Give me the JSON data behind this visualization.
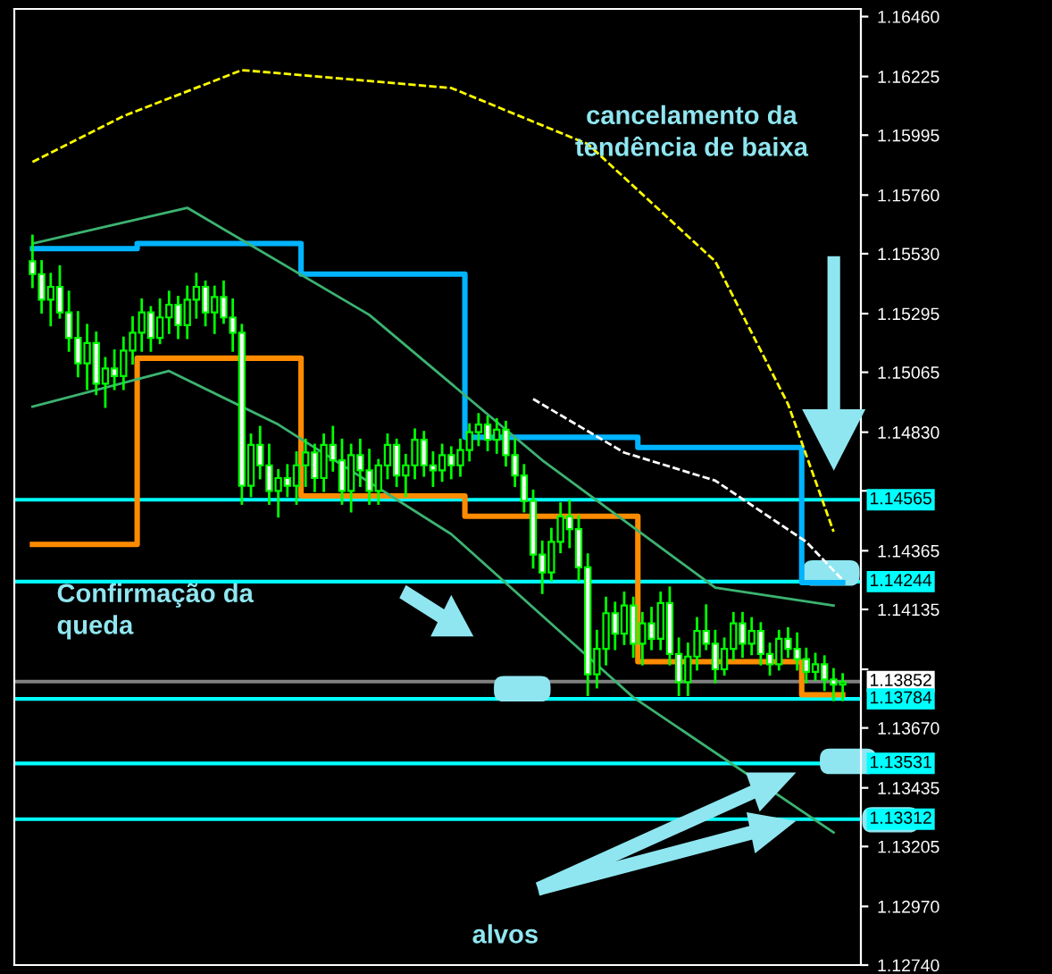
{
  "chart_data": {
    "type": "candlestick",
    "categories": [
      null,
      null,
      null,
      null,
      null,
      null,
      null,
      null,
      null,
      null,
      null,
      null,
      null,
      null,
      null,
      null,
      null,
      null,
      null,
      null,
      null,
      null,
      null,
      null,
      null,
      null,
      null,
      null,
      null,
      null,
      null,
      null,
      null,
      null,
      null,
      null,
      null,
      null,
      null,
      null,
      null,
      null,
      null,
      null,
      null,
      null,
      null,
      null,
      null,
      null,
      null,
      null,
      null,
      null,
      null,
      null,
      null,
      null,
      null,
      null,
      null,
      null,
      null,
      null,
      null,
      null,
      null,
      null,
      null,
      null,
      null,
      null,
      null,
      null,
      null,
      null,
      null,
      null,
      null,
      null,
      null,
      null,
      null,
      null,
      null,
      null,
      null,
      null,
      null,
      null
    ],
    "ohlc": [
      [
        1.155,
        1.156,
        1.154,
        1.1545
      ],
      [
        1.1545,
        1.155,
        1.153,
        1.1535
      ],
      [
        1.1535,
        1.1545,
        1.1525,
        1.154
      ],
      [
        1.154,
        1.1548,
        1.1528,
        1.153
      ],
      [
        1.153,
        1.1538,
        1.1515,
        1.152
      ],
      [
        1.152,
        1.153,
        1.1505,
        1.151
      ],
      [
        1.151,
        1.1525,
        1.15,
        1.1518
      ],
      [
        1.1518,
        1.1522,
        1.1498,
        1.1502
      ],
      [
        1.1502,
        1.1512,
        1.1493,
        1.1508
      ],
      [
        1.1508,
        1.1515,
        1.15,
        1.1505
      ],
      [
        1.1505,
        1.152,
        1.15,
        1.1515
      ],
      [
        1.1515,
        1.1528,
        1.151,
        1.1522
      ],
      [
        1.1522,
        1.1535,
        1.1515,
        1.153
      ],
      [
        1.153,
        1.1532,
        1.1515,
        1.152
      ],
      [
        1.152,
        1.1535,
        1.1518,
        1.1528
      ],
      [
        1.1528,
        1.1538,
        1.1522,
        1.1533
      ],
      [
        1.1533,
        1.1536,
        1.152,
        1.1525
      ],
      [
        1.1525,
        1.154,
        1.152,
        1.1535
      ],
      [
        1.1535,
        1.1545,
        1.1528,
        1.154
      ],
      [
        1.154,
        1.1542,
        1.1525,
        1.153
      ],
      [
        1.153,
        1.154,
        1.1522,
        1.1536
      ],
      [
        1.1536,
        1.1542,
        1.1526,
        1.1528
      ],
      [
        1.1528,
        1.1535,
        1.1515,
        1.1522
      ],
      [
        1.1522,
        1.1525,
        1.1455,
        1.1462
      ],
      [
        1.1462,
        1.1482,
        1.1458,
        1.1478
      ],
      [
        1.1478,
        1.1485,
        1.1465,
        1.147
      ],
      [
        1.147,
        1.1478,
        1.1455,
        1.146
      ],
      [
        1.146,
        1.1468,
        1.145,
        1.1465
      ],
      [
        1.1465,
        1.147,
        1.1458,
        1.1462
      ],
      [
        1.1462,
        1.1475,
        1.1455,
        1.147
      ],
      [
        1.147,
        1.148,
        1.1462,
        1.1475
      ],
      [
        1.1475,
        1.1478,
        1.146,
        1.1465
      ],
      [
        1.1465,
        1.1482,
        1.146,
        1.1478
      ],
      [
        1.1478,
        1.1485,
        1.1468,
        1.1472
      ],
      [
        1.1472,
        1.148,
        1.1455,
        1.146
      ],
      [
        1.146,
        1.1478,
        1.1452,
        1.1474
      ],
      [
        1.1474,
        1.148,
        1.1462,
        1.1468
      ],
      [
        1.1468,
        1.1476,
        1.1455,
        1.146
      ],
      [
        1.146,
        1.1472,
        1.1455,
        1.147
      ],
      [
        1.147,
        1.1482,
        1.1465,
        1.1478
      ],
      [
        1.1478,
        1.148,
        1.1462,
        1.1466
      ],
      [
        1.1466,
        1.1474,
        1.1458,
        1.147
      ],
      [
        1.147,
        1.1484,
        1.1465,
        1.148
      ],
      [
        1.148,
        1.1483,
        1.1466,
        1.147
      ],
      [
        1.147,
        1.1475,
        1.1462,
        1.1468
      ],
      [
        1.1468,
        1.1478,
        1.1464,
        1.1474
      ],
      [
        1.1474,
        1.1477,
        1.1465,
        1.147
      ],
      [
        1.147,
        1.148,
        1.1466,
        1.1476
      ],
      [
        1.1476,
        1.1486,
        1.1472,
        1.1483
      ],
      [
        1.1483,
        1.149,
        1.1478,
        1.1486
      ],
      [
        1.1486,
        1.1489,
        1.1476,
        1.148
      ],
      [
        1.148,
        1.1488,
        1.1475,
        1.1484
      ],
      [
        1.1484,
        1.1487,
        1.147,
        1.1474
      ],
      [
        1.1474,
        1.148,
        1.1462,
        1.1466
      ],
      [
        1.1466,
        1.147,
        1.1452,
        1.1456
      ],
      [
        1.1456,
        1.146,
        1.143,
        1.1435
      ],
      [
        1.1435,
        1.144,
        1.142,
        1.1428
      ],
      [
        1.1428,
        1.1445,
        1.1425,
        1.144
      ],
      [
        1.144,
        1.1455,
        1.1436,
        1.145
      ],
      [
        1.145,
        1.1456,
        1.1438,
        1.1445
      ],
      [
        1.1445,
        1.145,
        1.1425,
        1.143
      ],
      [
        1.143,
        1.1435,
        1.138,
        1.1388
      ],
      [
        1.1388,
        1.1405,
        1.1383,
        1.1398
      ],
      [
        1.1398,
        1.1418,
        1.1392,
        1.1412
      ],
      [
        1.1412,
        1.1416,
        1.1398,
        1.1404
      ],
      [
        1.1404,
        1.142,
        1.14,
        1.1415
      ],
      [
        1.1415,
        1.1418,
        1.1395,
        1.14
      ],
      [
        1.14,
        1.1412,
        1.1392,
        1.1408
      ],
      [
        1.1408,
        1.1414,
        1.1398,
        1.1402
      ],
      [
        1.1402,
        1.142,
        1.1398,
        1.1416
      ],
      [
        1.1416,
        1.1422,
        1.1392,
        1.1396
      ],
      [
        1.1396,
        1.1402,
        1.138,
        1.1385
      ],
      [
        1.1385,
        1.14,
        1.138,
        1.1395
      ],
      [
        1.1395,
        1.141,
        1.139,
        1.1405
      ],
      [
        1.1405,
        1.1415,
        1.1398,
        1.14
      ],
      [
        1.14,
        1.1405,
        1.1385,
        1.139
      ],
      [
        1.139,
        1.1402,
        1.1388,
        1.1398
      ],
      [
        1.1398,
        1.1412,
        1.1394,
        1.1408
      ],
      [
        1.1408,
        1.1412,
        1.1395,
        1.14
      ],
      [
        1.14,
        1.141,
        1.1396,
        1.1405
      ],
      [
        1.1405,
        1.1408,
        1.1392,
        1.1396
      ],
      [
        1.1396,
        1.14,
        1.1388,
        1.1392
      ],
      [
        1.1392,
        1.1405,
        1.139,
        1.1402
      ],
      [
        1.1402,
        1.1406,
        1.1395,
        1.1398
      ],
      [
        1.1398,
        1.1404,
        1.139,
        1.1394
      ],
      [
        1.1394,
        1.1398,
        1.1385,
        1.1389
      ],
      [
        1.1389,
        1.1396,
        1.1386,
        1.1392
      ],
      [
        1.1392,
        1.1395,
        1.1382,
        1.1386
      ],
      [
        1.1386,
        1.139,
        1.1378,
        1.1384
      ],
      [
        1.1384,
        1.1388,
        1.1378,
        1.1385
      ]
    ],
    "color": "#00ff00",
    "series": [
      {
        "type": "step",
        "color": "#00b4ff",
        "values": [
          1.1555,
          1.1555,
          1.1555,
          1.1555,
          1.1555,
          1.1555,
          1.1555,
          1.1555,
          1.1555,
          1.1555,
          1.1555,
          1.1555,
          1.1557,
          1.1557,
          1.1557,
          1.1557,
          1.1557,
          1.1557,
          1.1557,
          1.1557,
          1.1557,
          1.1557,
          1.1557,
          1.1557,
          1.1557,
          1.1557,
          1.1557,
          1.1557,
          1.1557,
          1.1557,
          1.1545,
          1.1545,
          1.1545,
          1.1545,
          1.1545,
          1.1545,
          1.1545,
          1.1545,
          1.1545,
          1.1545,
          1.1545,
          1.1545,
          1.1545,
          1.1545,
          1.1545,
          1.1545,
          1.1545,
          1.1545,
          1.1481,
          1.1481,
          1.1481,
          1.1481,
          1.1481,
          1.1481,
          1.1481,
          1.1481,
          1.1481,
          1.1481,
          1.1481,
          1.1481,
          1.1481,
          1.1481,
          1.1481,
          1.1481,
          1.1481,
          1.1481,
          1.1481,
          1.1477,
          1.1477,
          1.1477,
          1.1477,
          1.1477,
          1.1477,
          1.1477,
          1.1477,
          1.1477,
          1.1477,
          1.1477,
          1.1477,
          1.1477,
          1.1477,
          1.1477,
          1.1477,
          1.1477,
          1.1477,
          1.1424,
          1.1424,
          1.1424,
          1.1424,
          1.1424
        ]
      },
      {
        "type": "step",
        "color": "#ff8c00",
        "values": [
          1.1439,
          1.1439,
          1.1439,
          1.1439,
          1.1439,
          1.1439,
          1.1439,
          1.1439,
          1.1439,
          1.1439,
          1.1439,
          1.1439,
          1.1512,
          1.1512,
          1.1512,
          1.1512,
          1.1512,
          1.1512,
          1.1512,
          1.1512,
          1.1512,
          1.1512,
          1.1512,
          1.1512,
          1.1512,
          1.1512,
          1.1512,
          1.1512,
          1.1512,
          1.1512,
          1.1458,
          1.1458,
          1.1458,
          1.1458,
          1.1458,
          1.1458,
          1.1458,
          1.1458,
          1.1458,
          1.1458,
          1.1458,
          1.1458,
          1.1458,
          1.1458,
          1.1458,
          1.1458,
          1.1458,
          1.1458,
          1.145,
          1.145,
          1.145,
          1.145,
          1.145,
          1.145,
          1.145,
          1.145,
          1.145,
          1.145,
          1.145,
          1.145,
          1.145,
          1.145,
          1.145,
          1.145,
          1.145,
          1.145,
          1.145,
          1.1393,
          1.1393,
          1.1393,
          1.1393,
          1.1393,
          1.1393,
          1.1393,
          1.1393,
          1.1393,
          1.1393,
          1.1393,
          1.1393,
          1.1393,
          1.1393,
          1.1393,
          1.1393,
          1.1393,
          1.1393,
          1.138,
          1.138,
          1.138,
          1.138,
          1.138
        ]
      },
      {
        "type": "line",
        "color": "#ffff00",
        "line_style": "dashed",
        "values": [
          1.1589,
          null,
          null,
          null,
          null,
          null,
          null,
          null,
          null,
          null,
          1.1607,
          null,
          null,
          null,
          null,
          null,
          null,
          null,
          null,
          null,
          null,
          null,
          null,
          1.1625,
          null,
          null,
          null,
          null,
          null,
          null,
          null,
          null,
          null,
          null,
          null,
          null,
          null,
          null,
          null,
          null,
          null,
          null,
          null,
          null,
          null,
          null,
          1.1618,
          null,
          null,
          null,
          null,
          null,
          null,
          null,
          null,
          null,
          null,
          null,
          null,
          null,
          null,
          1.1596,
          null,
          null,
          null,
          null,
          null,
          null,
          null,
          null,
          null,
          null,
          null,
          null,
          null,
          1.155,
          null,
          null,
          null,
          null,
          null,
          null,
          null,
          1.1494,
          null,
          null,
          null,
          null,
          1.1444,
          null
        ]
      },
      {
        "type": "line",
        "color": "#ffffff",
        "line_style": "dashed",
        "values": [
          null,
          null,
          null,
          null,
          null,
          null,
          null,
          null,
          null,
          null,
          null,
          null,
          null,
          null,
          null,
          null,
          null,
          null,
          null,
          null,
          null,
          null,
          null,
          null,
          null,
          null,
          null,
          null,
          null,
          null,
          null,
          null,
          null,
          null,
          null,
          null,
          null,
          null,
          null,
          null,
          null,
          null,
          null,
          null,
          null,
          null,
          null,
          null,
          null,
          null,
          null,
          null,
          null,
          null,
          null,
          1.1496,
          null,
          null,
          null,
          null,
          null,
          null,
          null,
          null,
          null,
          1.1475,
          null,
          null,
          null,
          null,
          null,
          null,
          null,
          null,
          null,
          1.1464,
          null,
          null,
          null,
          null,
          null,
          null,
          null,
          null,
          null,
          1.144,
          null,
          null,
          null,
          1.1425
        ]
      },
      {
        "type": "line",
        "color": "#3cb371",
        "values": [
          1.1557,
          null,
          null,
          null,
          null,
          null,
          null,
          null,
          null,
          null,
          null,
          null,
          null,
          null,
          null,
          null,
          null,
          1.1571,
          null,
          null,
          null,
          null,
          null,
          null,
          null,
          null,
          null,
          null,
          null,
          null,
          null,
          null,
          null,
          null,
          null,
          null,
          null,
          1.1529,
          null,
          null,
          null,
          null,
          null,
          null,
          null,
          null,
          null,
          null,
          null,
          null,
          null,
          null,
          null,
          null,
          null,
          null,
          1.1472,
          null,
          null,
          null,
          null,
          null,
          null,
          null,
          null,
          null,
          null,
          null,
          null,
          null,
          null,
          null,
          null,
          null,
          null,
          1.1422,
          null,
          null,
          null,
          null,
          null,
          null,
          null,
          null,
          null,
          null,
          null,
          null,
          1.1415,
          null
        ]
      },
      {
        "type": "line",
        "color": "#3cb371",
        "values": [
          1.1493,
          null,
          null,
          null,
          null,
          null,
          null,
          null,
          null,
          null,
          null,
          null,
          null,
          null,
          null,
          1.1507,
          null,
          null,
          null,
          null,
          null,
          null,
          null,
          null,
          null,
          null,
          null,
          1.1486,
          null,
          null,
          null,
          null,
          null,
          null,
          null,
          null,
          null,
          null,
          null,
          null,
          null,
          null,
          null,
          null,
          null,
          null,
          1.1443,
          null,
          null,
          null,
          null,
          null,
          null,
          null,
          null,
          null,
          null,
          null,
          null,
          null,
          null,
          null,
          null,
          null,
          null,
          null,
          1.1379,
          null,
          null,
          null,
          null,
          null,
          null,
          null,
          null,
          null,
          null,
          null,
          null,
          null,
          null,
          null,
          null,
          null,
          null,
          null,
          null,
          null,
          1.1326,
          null
        ]
      }
    ],
    "ylim": [
      1.1274,
      1.1649
    ],
    "yticks": [
      {
        "value": 1.1274,
        "label": "1.12740"
      },
      {
        "value": 1.1297,
        "label": "1.12970"
      },
      {
        "value": 1.13205,
        "label": "1.13205"
      },
      {
        "value": 1.13435,
        "label": "1.13435"
      },
      {
        "value": 1.1367,
        "label": "1.13670"
      },
      {
        "value": 1.139,
        "label": null
      },
      {
        "value": 1.14135,
        "label": "1.14135"
      },
      {
        "value": 1.14365,
        "label": "1.14365"
      },
      {
        "value": 1.146,
        "label": null
      },
      {
        "value": 1.1483,
        "label": "1.14830"
      },
      {
        "value": 1.15065,
        "label": "1.15065"
      },
      {
        "value": 1.15295,
        "label": "1.15295"
      },
      {
        "value": 1.1553,
        "label": "1.15530"
      },
      {
        "value": 1.1576,
        "label": "1.15760"
      },
      {
        "value": 1.15995,
        "label": "1.15995"
      },
      {
        "value": 1.16225,
        "label": "1.16225"
      },
      {
        "value": 1.1646,
        "label": "1.16460"
      }
    ],
    "tick_labels": "y",
    "grid": false,
    "ref_lines": [
      {
        "axis": "y",
        "value": 1.14565,
        "label": "1.14565",
        "color": "#00ffff"
      },
      {
        "axis": "y",
        "value": 1.14244,
        "label": "1.14244",
        "color": "#00ffff"
      },
      {
        "axis": "y",
        "value": 1.13852,
        "label": "1.13852",
        "color": "#808080"
      },
      {
        "axis": "y",
        "value": 1.13784,
        "label": "1.13784",
        "color": "#00ffff"
      },
      {
        "axis": "y",
        "value": 1.13531,
        "label": "1.13531",
        "color": "#00ffff"
      },
      {
        "axis": "y",
        "value": 1.13312,
        "label": "1.13312",
        "color": "#00ffff"
      }
    ],
    "annotations": [
      "cancelamento da\ntendência de baixa",
      "Confirmação da\nqueda",
      "alvos"
    ]
  }
}
